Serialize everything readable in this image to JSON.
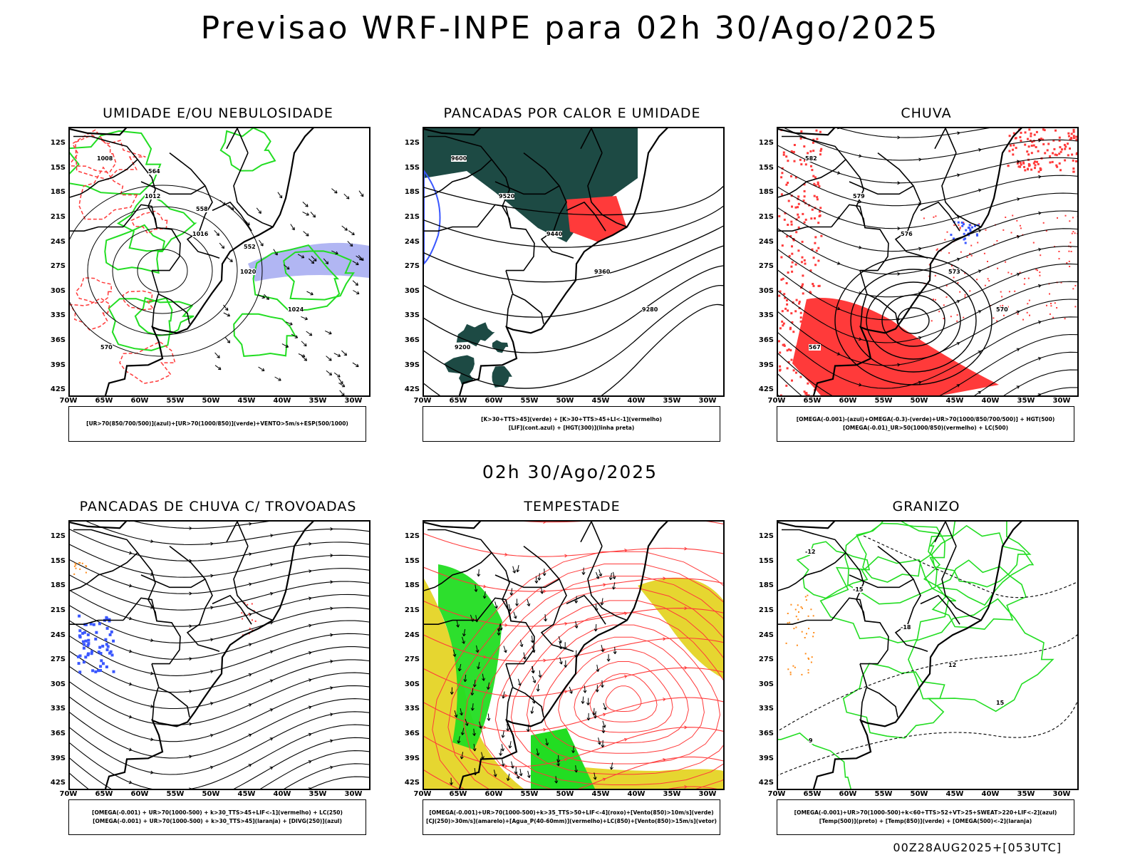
{
  "title": "Previsao WRF-INPE  para 02h 30/Ago/2025",
  "subtitle": "02h 30/Ago/2025",
  "footer": "00Z28AUG2025+[053UTC]",
  "axes": {
    "lat_labels": [
      "12S",
      "15S",
      "18S",
      "21S",
      "24S",
      "27S",
      "30S",
      "33S",
      "36S",
      "39S",
      "42S"
    ],
    "lon_labels": [
      "70W",
      "65W",
      "60W",
      "55W",
      "50W",
      "45W",
      "40W",
      "35W",
      "30W"
    ]
  },
  "panels": [
    {
      "id": "umidade",
      "title": "UMIDADE E/OU NEBULOSIDADE",
      "legend": [
        "[UR>70(850/700/500)](azul)+[UR>70(1000/850)](verde)+VENTO>5m/s+ESP(500/1000)"
      ],
      "labels": [
        "1008",
        "1012",
        "1016",
        "1020",
        "1024",
        "570",
        "564",
        "558",
        "552"
      ]
    },
    {
      "id": "pancadas-calor",
      "title": "PANCADAS POR CALOR E UMIDADE",
      "legend": [
        "[K>30+TTS>45](verde) + [K>30+TTS>45+LI<-1](vermelho)",
        "[LIF](cont.azul) + [HGT(300)](linha preta)"
      ],
      "labels": [
        "9600",
        "9520",
        "9440",
        "9360",
        "9280",
        "9200"
      ]
    },
    {
      "id": "chuva",
      "title": "CHUVA",
      "legend": [
        "[OMEGA(-0.001)-(azul)+OMEGA(-0.3)-(verde)+UR>70(1000/850/700/500)] + HGT(500)",
        "[OMEGA(-0.01)_UR>50(1000/850)(vermelho) + LC(500)"
      ],
      "labels": [
        "582",
        "579",
        "576",
        "573",
        "570",
        "567"
      ]
    },
    {
      "id": "trovoadas",
      "title": "PANCADAS DE CHUVA C/ TROVOADAS",
      "legend": [
        "[OMEGA(-0.001) + UR>70(1000-500) + k>30_TTS>45+LIF<-1](vermelho) + LC(250)",
        "[OMEGA(-0.001) + UR>70(1000-500) + k>30_TTS>45](laranja) + [DIVG(250)](azul)"
      ],
      "labels": []
    },
    {
      "id": "tempestade",
      "title": "TEMPESTADE",
      "legend": [
        "[OMEGA(-0.001)+UR>70(1000-500)+k>35_TTS>50+LIF<-4](roxo)+[Vento(850)>10m/s](verde)",
        "[CJ(250)>30m/s](amarelo)+[Agua_P(40-60mm)](vermelho)+LC(850)+[Vento(850)>15m/s](vetor)"
      ],
      "labels": []
    },
    {
      "id": "granizo",
      "title": "GRANIZO",
      "legend": [
        "[OMEGA(-0.001)+UR>70(1000-500)+k<60+TTS>52+VT>25+SWEAT>220+LIF<-2](azul)",
        "[Temp(500)](preto) + [Temp(850)](verde) + [OMEGA(500)<-2](laranja)"
      ],
      "labels": [
        "-12",
        "-15",
        "-18",
        "12",
        "15",
        "9"
      ]
    }
  ],
  "colors": {
    "blue": "#3a57ff",
    "green": "#22dd22",
    "red": "#ff3a3a",
    "orange": "#ff8c1a",
    "yellow": "#e6d630",
    "darkgreen": "#1d4a44",
    "lavender": "#a9aef2"
  }
}
